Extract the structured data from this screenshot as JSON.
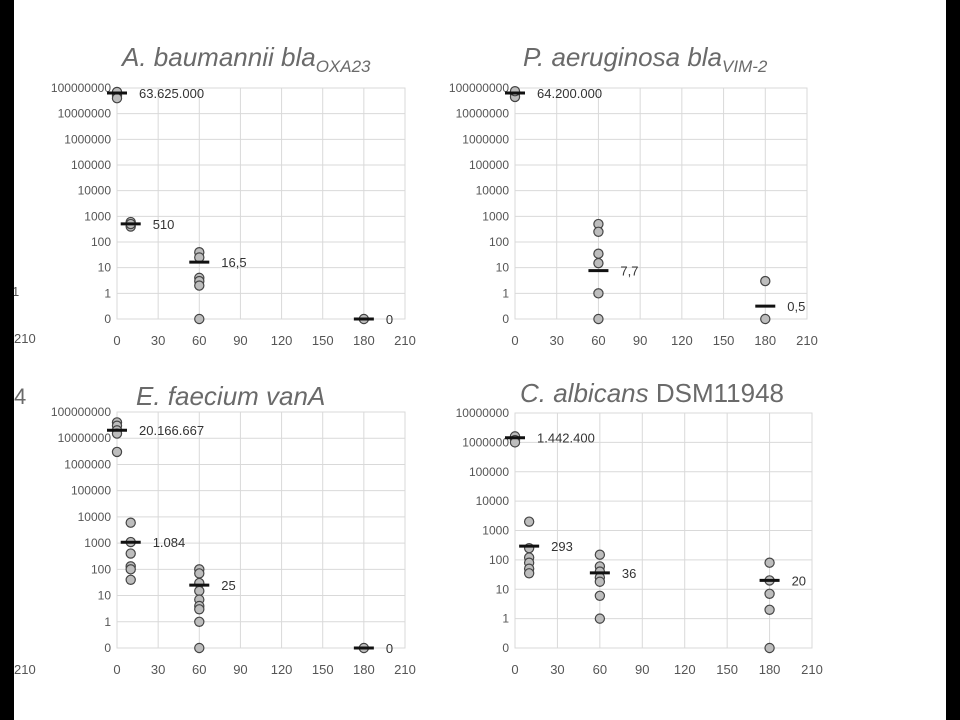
{
  "colors": {
    "marker_fill": "#bdbdbd",
    "marker_stroke": "#444444",
    "median": "#111111",
    "grid": "#d9d9d9",
    "text": "#555555",
    "title": "#6a6a6a"
  },
  "edge_fragments": [
    "1",
    "210",
    "4",
    "210"
  ],
  "chart_data": [
    {
      "type": "scatter",
      "title": {
        "main": "A. baumannii bla",
        "sub": "OXA23",
        "suffix": ""
      },
      "xticks": [
        "0",
        "30",
        "60",
        "90",
        "120",
        "150",
        "180",
        "210"
      ],
      "yticks": [
        "0",
        "1",
        "10",
        "100",
        "1000",
        "10000",
        "100000",
        "1000000",
        "10000000",
        "100000000"
      ],
      "xlim": [
        0,
        210
      ],
      "yscale": "log",
      "grid": true,
      "points": [
        {
          "x": 0,
          "y": 60000000
        },
        {
          "x": 0,
          "y": 50000000
        },
        {
          "x": 0,
          "y": 70000000
        },
        {
          "x": 0,
          "y": 40000000
        },
        {
          "x": 10,
          "y": 600
        },
        {
          "x": 10,
          "y": 400
        },
        {
          "x": 10,
          "y": 500
        },
        {
          "x": 60,
          "y": 40
        },
        {
          "x": 60,
          "y": 25
        },
        {
          "x": 60,
          "y": 4
        },
        {
          "x": 60,
          "y": 3
        },
        {
          "x": 60,
          "y": 2
        },
        {
          "x": 60,
          "y": 0
        },
        {
          "x": 180,
          "y": 0
        }
      ],
      "medians": [
        {
          "x": 0,
          "y": 63625000,
          "label": "63.625.000"
        },
        {
          "x": 10,
          "y": 510,
          "label": "510"
        },
        {
          "x": 60,
          "y": 16.5,
          "label": "16,5"
        },
        {
          "x": 180,
          "y": 0,
          "label": "0"
        }
      ]
    },
    {
      "type": "scatter",
      "title": {
        "main": "P. aeruginosa bla",
        "sub": "VIM-2",
        "suffix": ""
      },
      "xticks": [
        "0",
        "30",
        "60",
        "90",
        "120",
        "150",
        "180",
        "210"
      ],
      "yticks": [
        "0",
        "1",
        "10",
        "100",
        "1000",
        "10000",
        "100000",
        "1000000",
        "10000000",
        "100000000"
      ],
      "xlim": [
        0,
        210
      ],
      "yscale": "log",
      "grid": true,
      "points": [
        {
          "x": 0,
          "y": 60000000
        },
        {
          "x": 0,
          "y": 45000000
        },
        {
          "x": 0,
          "y": 75000000
        },
        {
          "x": 60,
          "y": 500
        },
        {
          "x": 60,
          "y": 250
        },
        {
          "x": 60,
          "y": 35
        },
        {
          "x": 60,
          "y": 15
        },
        {
          "x": 60,
          "y": 1
        },
        {
          "x": 60,
          "y": 0
        },
        {
          "x": 180,
          "y": 3
        },
        {
          "x": 180,
          "y": 0
        }
      ],
      "medians": [
        {
          "x": 0,
          "y": 64200000,
          "label": "64.200.000"
        },
        {
          "x": 60,
          "y": 7.7,
          "label": "7,7"
        },
        {
          "x": 180,
          "y": 0.5,
          "label": "0,5"
        }
      ]
    },
    {
      "type": "scatter",
      "title": {
        "main": "E. faecium vanA",
        "sub": "",
        "suffix": ""
      },
      "xticks": [
        "0",
        "30",
        "60",
        "90",
        "120",
        "150",
        "180",
        "210"
      ],
      "yticks": [
        "0",
        "1",
        "10",
        "100",
        "1000",
        "10000",
        "100000",
        "1000000",
        "10000000",
        "100000000"
      ],
      "xlim": [
        0,
        210
      ],
      "yscale": "log",
      "grid": true,
      "points": [
        {
          "x": 0,
          "y": 40000000
        },
        {
          "x": 0,
          "y": 30000000
        },
        {
          "x": 0,
          "y": 20000000
        },
        {
          "x": 0,
          "y": 15000000
        },
        {
          "x": 0,
          "y": 3000000
        },
        {
          "x": 10,
          "y": 6000
        },
        {
          "x": 10,
          "y": 1100
        },
        {
          "x": 10,
          "y": 400
        },
        {
          "x": 10,
          "y": 130
        },
        {
          "x": 10,
          "y": 100
        },
        {
          "x": 10,
          "y": 40
        },
        {
          "x": 60,
          "y": 100
        },
        {
          "x": 60,
          "y": 70
        },
        {
          "x": 60,
          "y": 30
        },
        {
          "x": 60,
          "y": 15
        },
        {
          "x": 60,
          "y": 7
        },
        {
          "x": 60,
          "y": 4
        },
        {
          "x": 60,
          "y": 3
        },
        {
          "x": 60,
          "y": 1
        },
        {
          "x": 60,
          "y": 0
        },
        {
          "x": 180,
          "y": 0
        }
      ],
      "medians": [
        {
          "x": 0,
          "y": 20166667,
          "label": "20.166.667"
        },
        {
          "x": 10,
          "y": 1084,
          "label": "1.084"
        },
        {
          "x": 60,
          "y": 25,
          "label": "25"
        },
        {
          "x": 180,
          "y": 0,
          "label": "0"
        }
      ]
    },
    {
      "type": "scatter",
      "title": {
        "main": "C. albicans",
        "sub": "",
        "suffix": " DSM11948"
      },
      "xticks": [
        "0",
        "30",
        "60",
        "90",
        "120",
        "150",
        "180",
        "210"
      ],
      "yticks": [
        "0",
        "1",
        "10",
        "100",
        "1000",
        "10000",
        "100000",
        "1000000",
        "10000000"
      ],
      "xlim": [
        0,
        210
      ],
      "yscale": "log",
      "grid": true,
      "points": [
        {
          "x": 0,
          "y": 1600000
        },
        {
          "x": 0,
          "y": 1200000
        },
        {
          "x": 0,
          "y": 1000000
        },
        {
          "x": 10,
          "y": 2000
        },
        {
          "x": 10,
          "y": 250
        },
        {
          "x": 10,
          "y": 120
        },
        {
          "x": 10,
          "y": 80
        },
        {
          "x": 10,
          "y": 50
        },
        {
          "x": 10,
          "y": 35
        },
        {
          "x": 60,
          "y": 150
        },
        {
          "x": 60,
          "y": 60
        },
        {
          "x": 60,
          "y": 40
        },
        {
          "x": 60,
          "y": 25
        },
        {
          "x": 60,
          "y": 18
        },
        {
          "x": 60,
          "y": 6
        },
        {
          "x": 60,
          "y": 1
        },
        {
          "x": 180,
          "y": 80
        },
        {
          "x": 180,
          "y": 20
        },
        {
          "x": 180,
          "y": 7
        },
        {
          "x": 180,
          "y": 2
        },
        {
          "x": 180,
          "y": 0
        }
      ],
      "medians": [
        {
          "x": 0,
          "y": 1442400,
          "label": "1.442.400"
        },
        {
          "x": 10,
          "y": 293,
          "label": "293"
        },
        {
          "x": 60,
          "y": 36,
          "label": "36"
        },
        {
          "x": 180,
          "y": 20,
          "label": "20"
        }
      ]
    }
  ]
}
